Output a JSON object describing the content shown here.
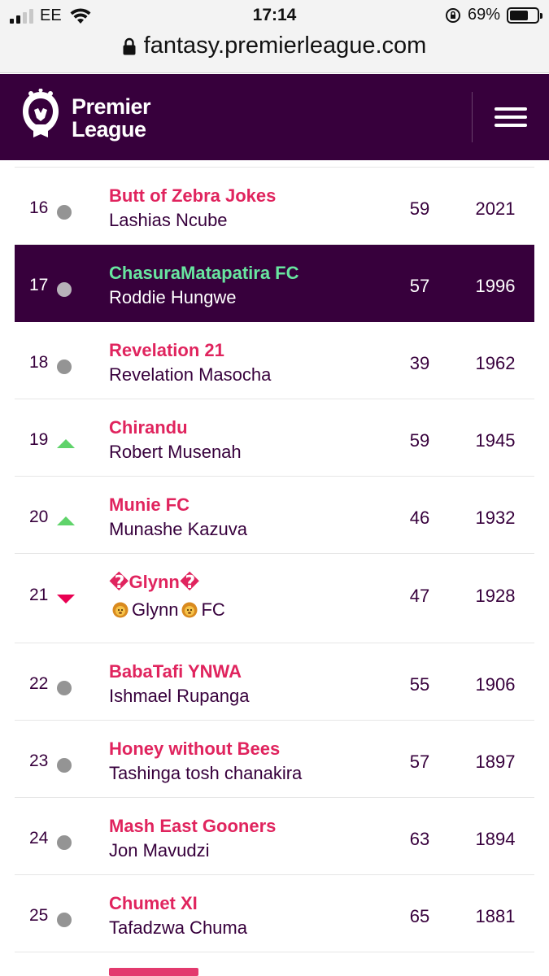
{
  "status_bar": {
    "carrier": "EE",
    "time": "17:14",
    "battery": "69%",
    "battery_level": 0.69
  },
  "browser": {
    "url": "fantasy.premierleague.com"
  },
  "header": {
    "brand_line1": "Premier",
    "brand_line2": "League"
  },
  "standings": [
    {
      "rank": "16",
      "movement": "same",
      "team": "Butt of Zebra Jokes",
      "manager": "Lashias Ncube",
      "gw": "59",
      "total": "2021",
      "highlighted": false
    },
    {
      "rank": "17",
      "movement": "same",
      "team": "ChasuraMatapatira FC",
      "manager": "Roddie Hungwe",
      "gw": "57",
      "total": "1996",
      "highlighted": true
    },
    {
      "rank": "18",
      "movement": "same",
      "team": "Revelation 21",
      "manager": "Revelation Masocha",
      "gw": "39",
      "total": "1962",
      "highlighted": false
    },
    {
      "rank": "19",
      "movement": "up",
      "team": "Chirandu",
      "manager": "Robert Musenah",
      "gw": "59",
      "total": "1945",
      "highlighted": false
    },
    {
      "rank": "20",
      "movement": "up",
      "team": "Munie FC",
      "manager": "Munashe Kazuva",
      "gw": "46",
      "total": "1932",
      "highlighted": false
    },
    {
      "rank": "21",
      "movement": "down",
      "team": "�Glynn�",
      "manager_parts": [
        "Glynn",
        "FC"
      ],
      "gw": "47",
      "total": "1928",
      "highlighted": false
    },
    {
      "rank": "22",
      "movement": "same",
      "team": "BabaTafi YNWA",
      "manager": "Ishmael Rupanga",
      "gw": "55",
      "total": "1906",
      "highlighted": false
    },
    {
      "rank": "23",
      "movement": "same",
      "team": "Honey without Bees",
      "manager": "Tashinga tosh chanakira",
      "gw": "57",
      "total": "1897",
      "highlighted": false
    },
    {
      "rank": "24",
      "movement": "same",
      "team": "Mash East Gooners",
      "manager": "Jon Mavudzi",
      "gw": "63",
      "total": "1894",
      "highlighted": false
    },
    {
      "rank": "25",
      "movement": "same",
      "team": "Chumet XI",
      "manager": "Tafadzwa Chuma",
      "gw": "65",
      "total": "1881",
      "highlighted": false
    }
  ],
  "colors": {
    "pl_purple": "#37003c",
    "team_pink": "#e0245e",
    "highlight_green": "#68e6a0",
    "up_green": "#5fd36a",
    "down_red": "#e90052",
    "same_grey": "#949494"
  }
}
